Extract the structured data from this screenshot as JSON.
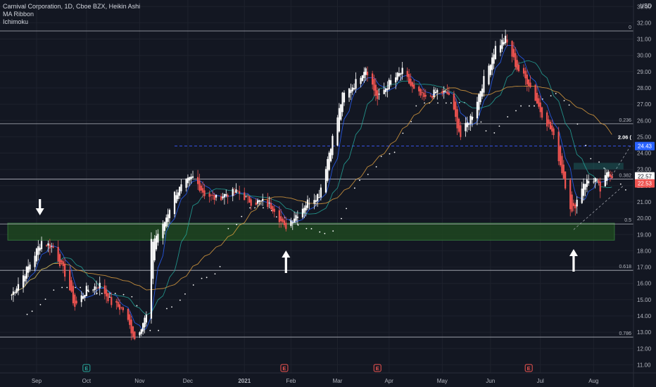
{
  "legend": {
    "symbol": "Carnival Corporation, 1D, Cboe BZX, Heikin Ashi",
    "indicator1": "MA Ribbon",
    "indicator2": "Ichimoku"
  },
  "currency": "USD",
  "colors": {
    "background": "#131722",
    "up": "#ffffff",
    "down": "#ef5350",
    "zone": "#1e4620",
    "zoneBorder": "#4caf50",
    "fib": "#b2b5be",
    "dashed": "#3d5afe",
    "ma1": "#2962ff",
    "ma2": "#26a69a",
    "ma3": "#e0a040",
    "cloud": "#ffffff",
    "badgeBlue": "#2962ff",
    "badgeRed": "#ef5350"
  },
  "chart_data": {
    "type": "candlestick",
    "title": "Carnival Corporation, 1D, Cboe BZX, Heikin Ashi",
    "ylim": [
      10.5,
      33.4
    ],
    "y_ticks": [
      "11.00",
      "12.00",
      "13.00",
      "14.00",
      "15.00",
      "16.00",
      "17.00",
      "18.00",
      "19.00",
      "20.00",
      "21.00",
      "22.00",
      "23.00",
      "24.00",
      "25.00",
      "26.00",
      "27.00",
      "28.00",
      "29.00",
      "30.00",
      "31.00",
      "32.00",
      "33.00"
    ],
    "x_ticks": [
      {
        "label": "Sep",
        "date": "2020-09-01"
      },
      {
        "label": "Oct",
        "date": "2020-10-01"
      },
      {
        "label": "Nov",
        "date": "2020-11-02"
      },
      {
        "label": "Dec",
        "date": "2020-12-01"
      },
      {
        "label": "2021",
        "date": "2021-01-04"
      },
      {
        "label": "Feb",
        "date": "2021-02-01"
      },
      {
        "label": "Mar",
        "date": "2021-03-01"
      },
      {
        "label": "Apr",
        "date": "2021-04-01"
      },
      {
        "label": "May",
        "date": "2021-05-03"
      },
      {
        "label": "Jun",
        "date": "2021-06-01"
      },
      {
        "label": "Jul",
        "date": "2021-07-01"
      },
      {
        "label": "Aug",
        "date": "2021-08-02"
      }
    ],
    "anchors": [
      [
        "2020-08-17",
        15.3
      ],
      [
        "2020-08-27",
        17.0
      ],
      [
        "2020-09-04",
        18.6
      ],
      [
        "2020-09-11",
        18.2
      ],
      [
        "2020-09-18",
        16.6
      ],
      [
        "2020-09-24",
        14.6
      ],
      [
        "2020-10-01",
        15.6
      ],
      [
        "2020-10-09",
        15.9
      ],
      [
        "2020-10-16",
        14.8
      ],
      [
        "2020-10-23",
        14.4
      ],
      [
        "2020-10-30",
        12.6
      ],
      [
        "2020-11-06",
        14.0
      ],
      [
        "2020-11-09",
        18.5
      ],
      [
        "2020-11-16",
        19.5
      ],
      [
        "2020-11-23",
        21.5
      ],
      [
        "2020-11-30",
        22.2
      ],
      [
        "2020-12-04",
        22.5
      ],
      [
        "2020-12-11",
        21.5
      ],
      [
        "2020-12-18",
        21.2
      ],
      [
        "2020-12-24",
        21.5
      ],
      [
        "2020-12-31",
        21.6
      ],
      [
        "2021-01-08",
        21.0
      ],
      [
        "2021-01-15",
        21.0
      ],
      [
        "2021-01-22",
        20.6
      ],
      [
        "2021-01-28",
        19.4
      ],
      [
        "2021-02-04",
        20.2
      ],
      [
        "2021-02-11",
        21.0
      ],
      [
        "2021-02-18",
        21.5
      ],
      [
        "2021-02-25",
        24.5
      ],
      [
        "2021-03-04",
        27.5
      ],
      [
        "2021-03-11",
        28.2
      ],
      [
        "2021-03-18",
        29.3
      ],
      [
        "2021-03-25",
        27.3
      ],
      [
        "2021-04-01",
        28.3
      ],
      [
        "2021-04-09",
        29.0
      ],
      [
        "2021-04-16",
        27.8
      ],
      [
        "2021-04-23",
        27.3
      ],
      [
        "2021-04-30",
        27.8
      ],
      [
        "2021-05-07",
        27.6
      ],
      [
        "2021-05-14",
        25.0
      ],
      [
        "2021-05-21",
        26.4
      ],
      [
        "2021-05-28",
        28.5
      ],
      [
        "2021-06-04",
        30.5
      ],
      [
        "2021-06-10",
        31.0
      ],
      [
        "2021-06-17",
        29.2
      ],
      [
        "2021-06-24",
        28.3
      ],
      [
        "2021-07-01",
        26.6
      ],
      [
        "2021-07-08",
        25.3
      ],
      [
        "2021-07-15",
        22.5
      ],
      [
        "2021-07-20",
        20.3
      ],
      [
        "2021-07-27",
        22.2
      ],
      [
        "2021-08-03",
        22.4
      ],
      [
        "2021-08-06",
        21.7
      ],
      [
        "2021-08-11",
        22.9
      ],
      [
        "2021-08-13",
        22.6
      ]
    ],
    "zone": {
      "low": 18.65,
      "high": 19.7
    },
    "fib_levels": [
      {
        "label": "0",
        "value": 31.5
      },
      {
        "label": "0.236",
        "value": 25.8
      },
      {
        "label": "0.382",
        "value": 22.4
      },
      {
        "label": "0.5",
        "value": 19.65
      },
      {
        "label": "0.618",
        "value": 16.8
      },
      {
        "label": "0.786",
        "value": 12.7
      }
    ],
    "dashed_level": {
      "value": 24.43,
      "label": "2.06 ("
    },
    "price_labels": [
      {
        "text": "24.43",
        "value": 24.43,
        "kind": "blue"
      },
      {
        "text": "22.57",
        "value": 22.57,
        "kind": "white"
      },
      {
        "text": "22.53",
        "value": 22.53,
        "kind": "red"
      }
    ],
    "arrows": [
      {
        "date": "2020-09-03",
        "direction": "down"
      },
      {
        "date": "2021-01-29",
        "direction": "up"
      },
      {
        "date": "2021-07-21",
        "direction": "up"
      }
    ],
    "event_badges": [
      {
        "date": "2020-10-01",
        "letter": "E",
        "kind": "green"
      },
      {
        "date": "2021-01-28",
        "letter": "E",
        "kind": "red"
      },
      {
        "date": "2021-03-25",
        "letter": "E",
        "kind": "red"
      },
      {
        "date": "2021-06-24",
        "letter": "E",
        "kind": "red"
      }
    ]
  }
}
